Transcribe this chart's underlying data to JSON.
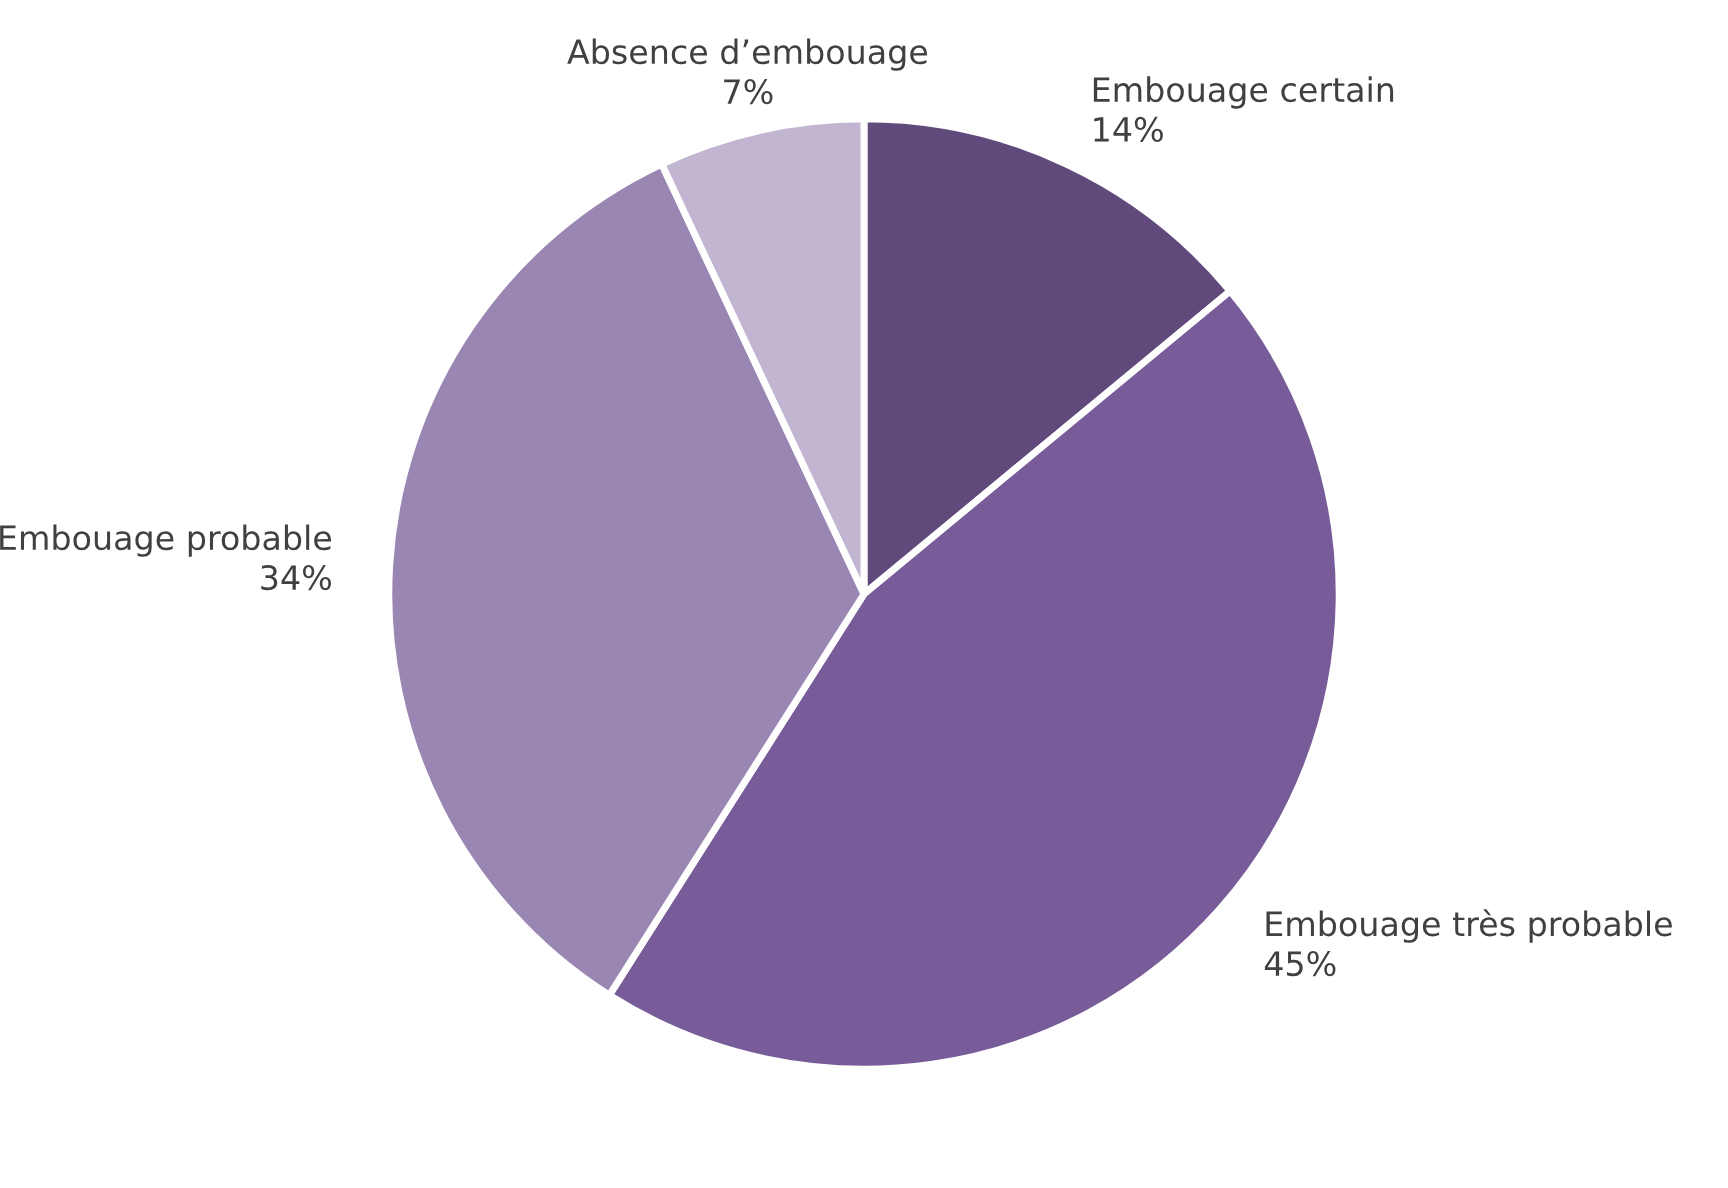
{
  "chart_data": {
    "type": "pie",
    "categories": [
      "Embouage certain",
      "Embouage très probable",
      "Embouage probable",
      "Absence d’embouage"
    ],
    "values": [
      14,
      45,
      34,
      7
    ],
    "value_labels": [
      "14%",
      "45%",
      "34%",
      "7%"
    ],
    "colors": [
      "#604a7b",
      "#775c99",
      "#9a86b2",
      "#c1b5d1"
    ]
  }
}
